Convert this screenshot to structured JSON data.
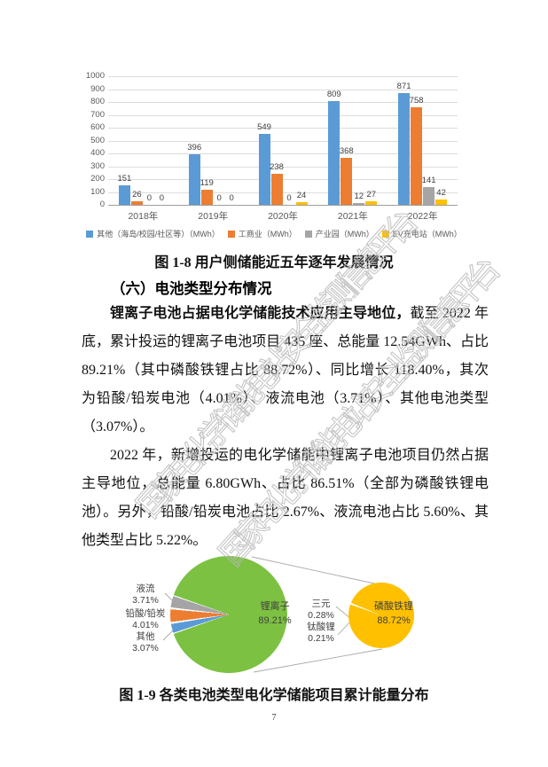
{
  "page": {
    "number": "7"
  },
  "watermark": {
    "text": "国家电化学储能电站安全监测信息平台",
    "color": "#bcbcbc"
  },
  "captions": {
    "fig1_8": "图 1-8 用户侧储能近五年逐年发展情况",
    "fig1_9": "图 1-9 各类电池类型电化学储能项目累计能量分布"
  },
  "section": {
    "heading": "（六）电池类型分布情况",
    "p1_bold": "锂离子电池占据电化学储能技术应用主导地位，",
    "p1_rest": "截至 2022 年底，累计投运的锂离子电池项目 435 座、总能量 12.54GWh、占比 89.21%（其中磷酸铁锂占比 88.72%）、同比增长 118.40%，其次为铅酸/铅炭电池（4.01%）、液流电池（3.71%）、其他电池类型（3.07%）。",
    "p2": "2022 年，新增投运的电化学储能中锂离子电池项目仍然占据主导地位，总能量 6.80GWh、占比 86.51%（全部为磷酸铁锂电池）。另外，铅酸/铅炭电池占比 2.67%、液流电池占比 5.60%、其他类型占比 5.22%。"
  },
  "chart_data": [
    {
      "type": "bar",
      "title": "图 1-8 用户侧储能近五年逐年发展情况",
      "categories": [
        "2018年",
        "2019年",
        "2020年",
        "2021年",
        "2022年"
      ],
      "series": [
        {
          "name": "其他（海岛/校园/社区等）（MWh）",
          "color": "#5B9BD5",
          "values": [
            151,
            396,
            549,
            809,
            871
          ]
        },
        {
          "name": "工商业（MWh）",
          "color": "#ED7D31",
          "values": [
            26,
            119,
            238,
            368,
            758
          ]
        },
        {
          "name": "产业园（MWh）",
          "color": "#A5A5A5",
          "values": [
            0,
            0,
            0,
            12,
            141
          ]
        },
        {
          "name": "EV充电站（MWh）",
          "color": "#FFC000",
          "values": [
            0,
            0,
            24,
            27,
            42
          ]
        }
      ],
      "ylim": [
        0,
        1000
      ],
      "ytick_step": 100,
      "grid": true,
      "legend_position": "bottom"
    },
    {
      "type": "pie",
      "title": "图 1-9 各类电池类型电化学储能项目累计能量分布",
      "pies": [
        {
          "name": "电池类型累计能量占比",
          "slices": [
            {
              "label": "锂离子",
              "pct": 89.21,
              "pct_label": "89.21%",
              "color": "#7CC142"
            },
            {
              "label": "液流",
              "pct": 3.71,
              "pct_label": "3.71%",
              "color": "#A5A5A5"
            },
            {
              "label": "铅酸/铅炭",
              "pct": 4.01,
              "pct_label": "4.01%",
              "color": "#ED7D31"
            },
            {
              "label": "其他",
              "pct": 3.07,
              "pct_label": "3.07%",
              "color": "#5B9BD5"
            }
          ]
        },
        {
          "name": "锂离子细分",
          "slices": [
            {
              "label": "磷酸铁锂",
              "pct": 88.72,
              "pct_label": "88.72%",
              "color": "#FFC000"
            },
            {
              "label": "三元",
              "pct": 0.28,
              "pct_label": "0.28%",
              "color": "#FFFFFF"
            },
            {
              "label": "钛酸锂",
              "pct": 0.21,
              "pct_label": "0.21%",
              "color": "#FFFFFF"
            }
          ]
        }
      ]
    }
  ]
}
